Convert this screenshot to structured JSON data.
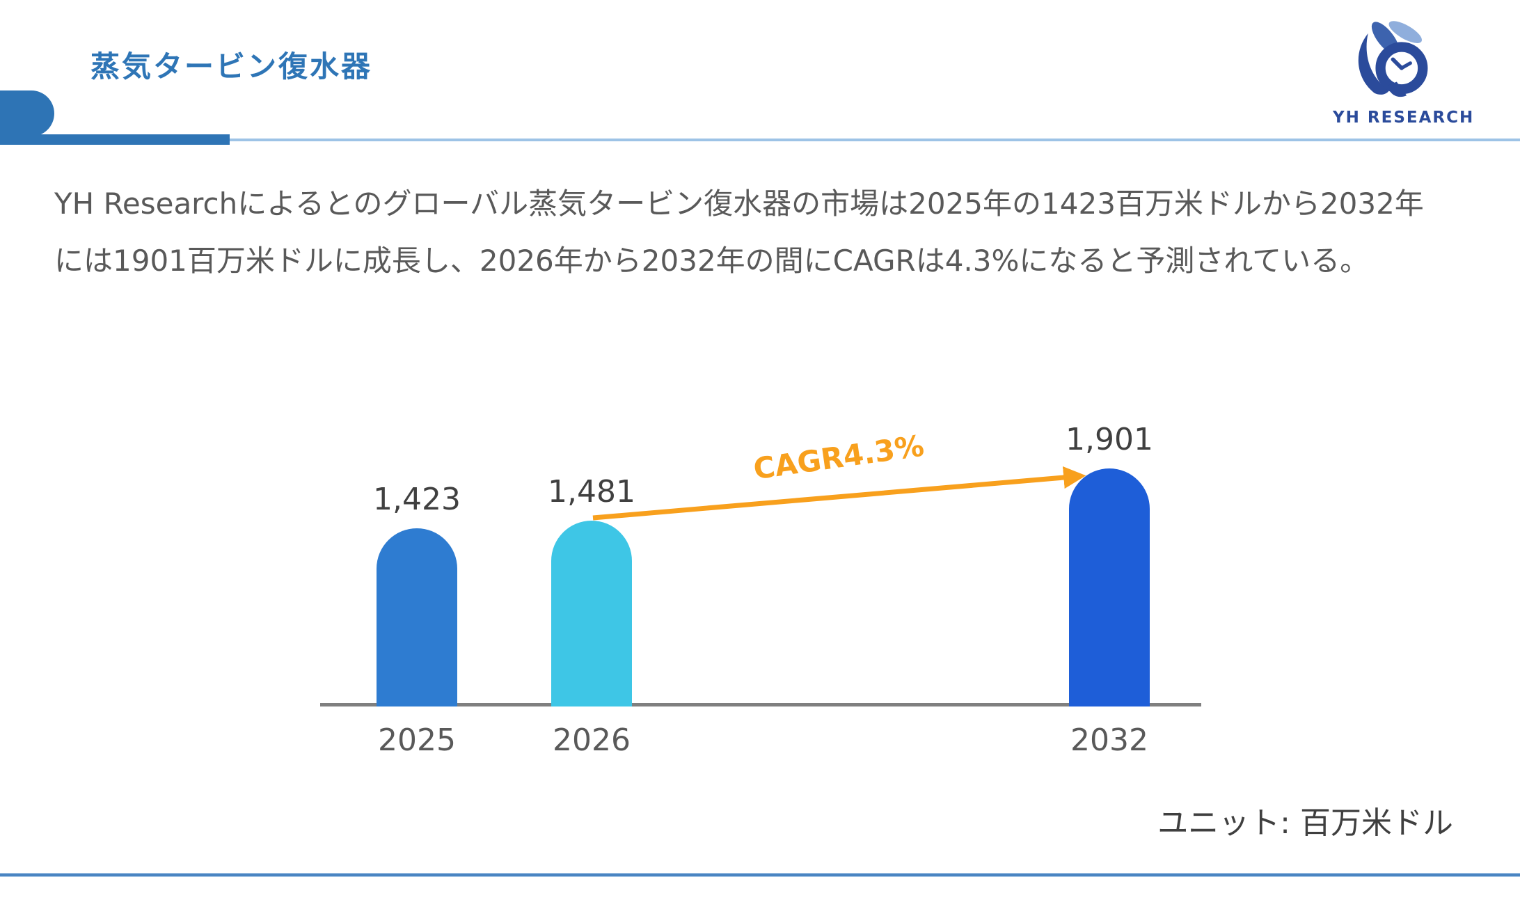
{
  "header": {
    "title": "蒸気タービン復水器",
    "logo_text": "YH RESEARCH"
  },
  "summary": {
    "lines": [
      "YH Researchによるとのグローバル蒸気タービン復水器の市場は2025年の1423百万米ドルから2032年",
      "には1901百万米ドルに成長し、2026年から2032年の間にCAGRは4.3%になると予測されている。"
    ]
  },
  "chart_data": {
    "type": "bar",
    "categories": [
      "2025",
      "2026",
      "2032"
    ],
    "values": [
      1423,
      1481,
      1901
    ],
    "value_labels": [
      "1,423",
      "1,481",
      "1,901"
    ],
    "unit_note": "ユニット: 百万米ドル",
    "cagr_label": "CAGR4.3%",
    "cagr_value_pct": 4.3,
    "ylim": [
      0,
      1901
    ],
    "grid": false,
    "legend": "none",
    "bar_colors": [
      "#2E7CD1",
      "#3EC6E6",
      "#1E5ED8"
    ],
    "cagr_color": "#F8A01D",
    "axis_color": "#7F7F7F"
  },
  "colors": {
    "accent_blue": "#2E74B5",
    "light_rule_blue": "#9DC3E6",
    "title_blue": "#2E75B6",
    "logo_navy": "#2B4B9B",
    "body_text_gray": "#595959"
  }
}
